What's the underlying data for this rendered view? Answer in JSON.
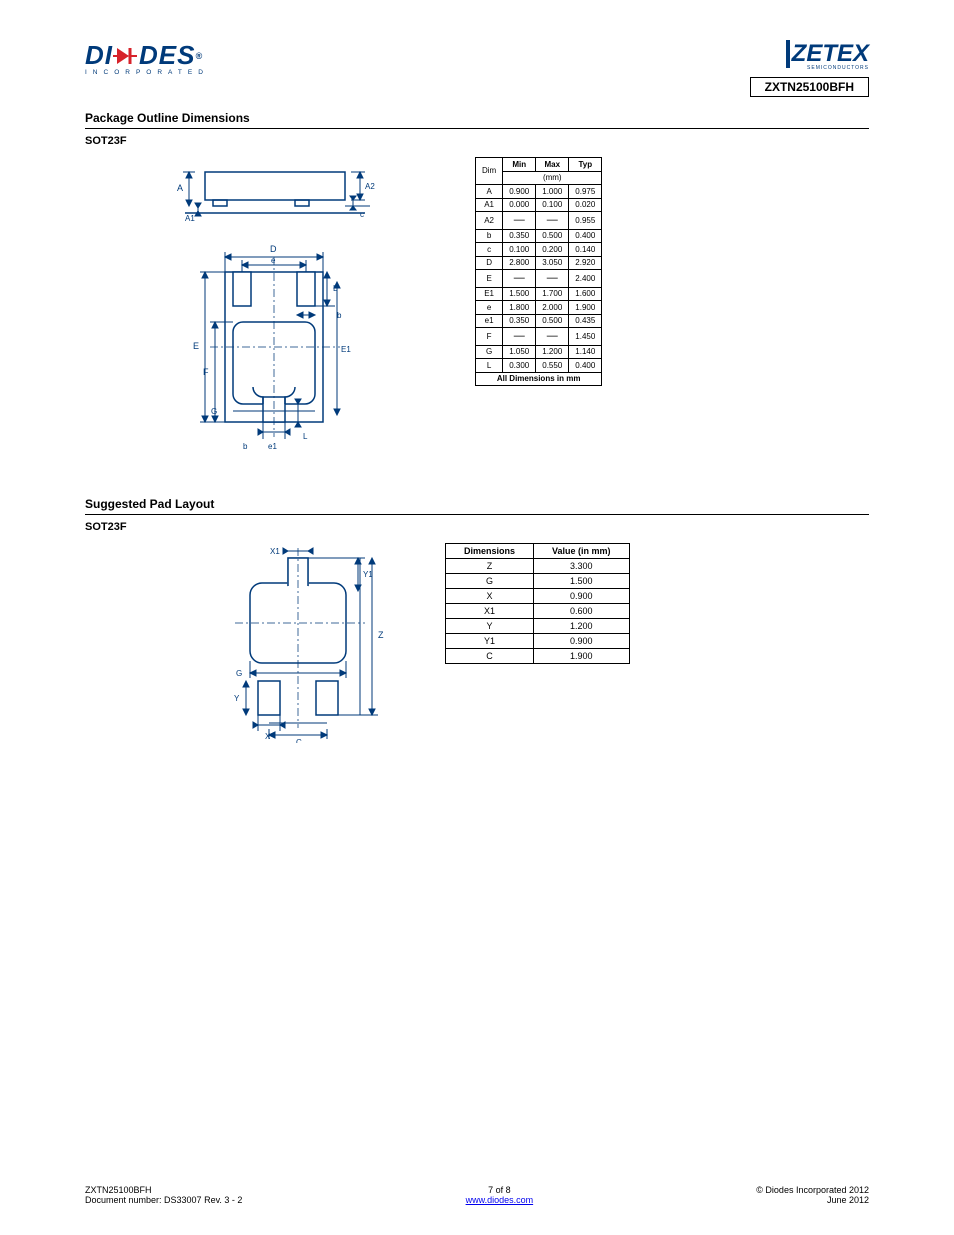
{
  "header": {
    "diodes_inc": "INCORPORATED",
    "zetex_sub": "SEMICONDUCTORS",
    "part_number": "ZXTN25100BFH"
  },
  "section1": {
    "title": "Package Outline Dimensions",
    "subtitle": "SOT23F"
  },
  "dim_table": {
    "head": [
      "Dim",
      "Min",
      "Max",
      "Typ"
    ],
    "rows": [
      [
        "A",
        "0.900",
        "1.000",
        "0.975"
      ],
      [
        "A1",
        "0.000",
        "0.100",
        "0.020"
      ],
      [
        "A2",
        "—",
        "—",
        "0.955"
      ],
      [
        "b",
        "0.350",
        "0.500",
        "0.400"
      ],
      [
        "c",
        "0.100",
        "0.200",
        "0.140"
      ],
      [
        "D",
        "2.800",
        "3.050",
        "2.920"
      ],
      [
        "E",
        "—",
        "—",
        "2.400"
      ],
      [
        "E1",
        "1.500",
        "1.700",
        "1.600"
      ],
      [
        "e",
        "1.800",
        "2.000",
        "1.900"
      ],
      [
        "e1",
        "0.350",
        "0.500",
        "0.435"
      ],
      [
        "F",
        "—",
        "—",
        "1.450"
      ],
      [
        "G",
        "1.050",
        "1.200",
        "1.140"
      ],
      [
        "L",
        "0.300",
        "0.550",
        "0.400"
      ]
    ],
    "footer": "All Dimensions in mm"
  },
  "section2": {
    "title": "Suggested Pad Layout",
    "subtitle": "SOT23F"
  },
  "land_table": {
    "head": [
      "Dimensions",
      "Value (in mm)"
    ],
    "rows": [
      [
        "Z",
        "3.300"
      ],
      [
        "G",
        "1.500"
      ],
      [
        "X",
        "0.900"
      ],
      [
        "X1",
        "0.600"
      ],
      [
        "Y",
        "1.200"
      ],
      [
        "Y1",
        "0.900"
      ],
      [
        "C",
        "1.900"
      ]
    ]
  },
  "drawing1": {
    "labels": {
      "A": "A",
      "A1": "A1",
      "A2": "A2",
      "b": "b",
      "c": "c",
      "D": "D",
      "E": "E",
      "E1": "E1",
      "e": "e",
      "e1": "e1",
      "F": "F",
      "G": "G",
      "L": "L"
    }
  },
  "drawing2": {
    "labels": {
      "Z": "Z",
      "G": "G",
      "X": "X",
      "X1": "X1",
      "Y": "Y",
      "Y1": "Y1",
      "C": "C"
    }
  },
  "footer": {
    "left_line1": "ZXTN25100BFH",
    "left_line2": "Document number: DS33007 Rev. 3 - 2",
    "left_link": "www.diodes.com",
    "center": "7 of 8",
    "right_line1": "© Diodes Incorporated 2012",
    "right_line2": "June 2012"
  }
}
